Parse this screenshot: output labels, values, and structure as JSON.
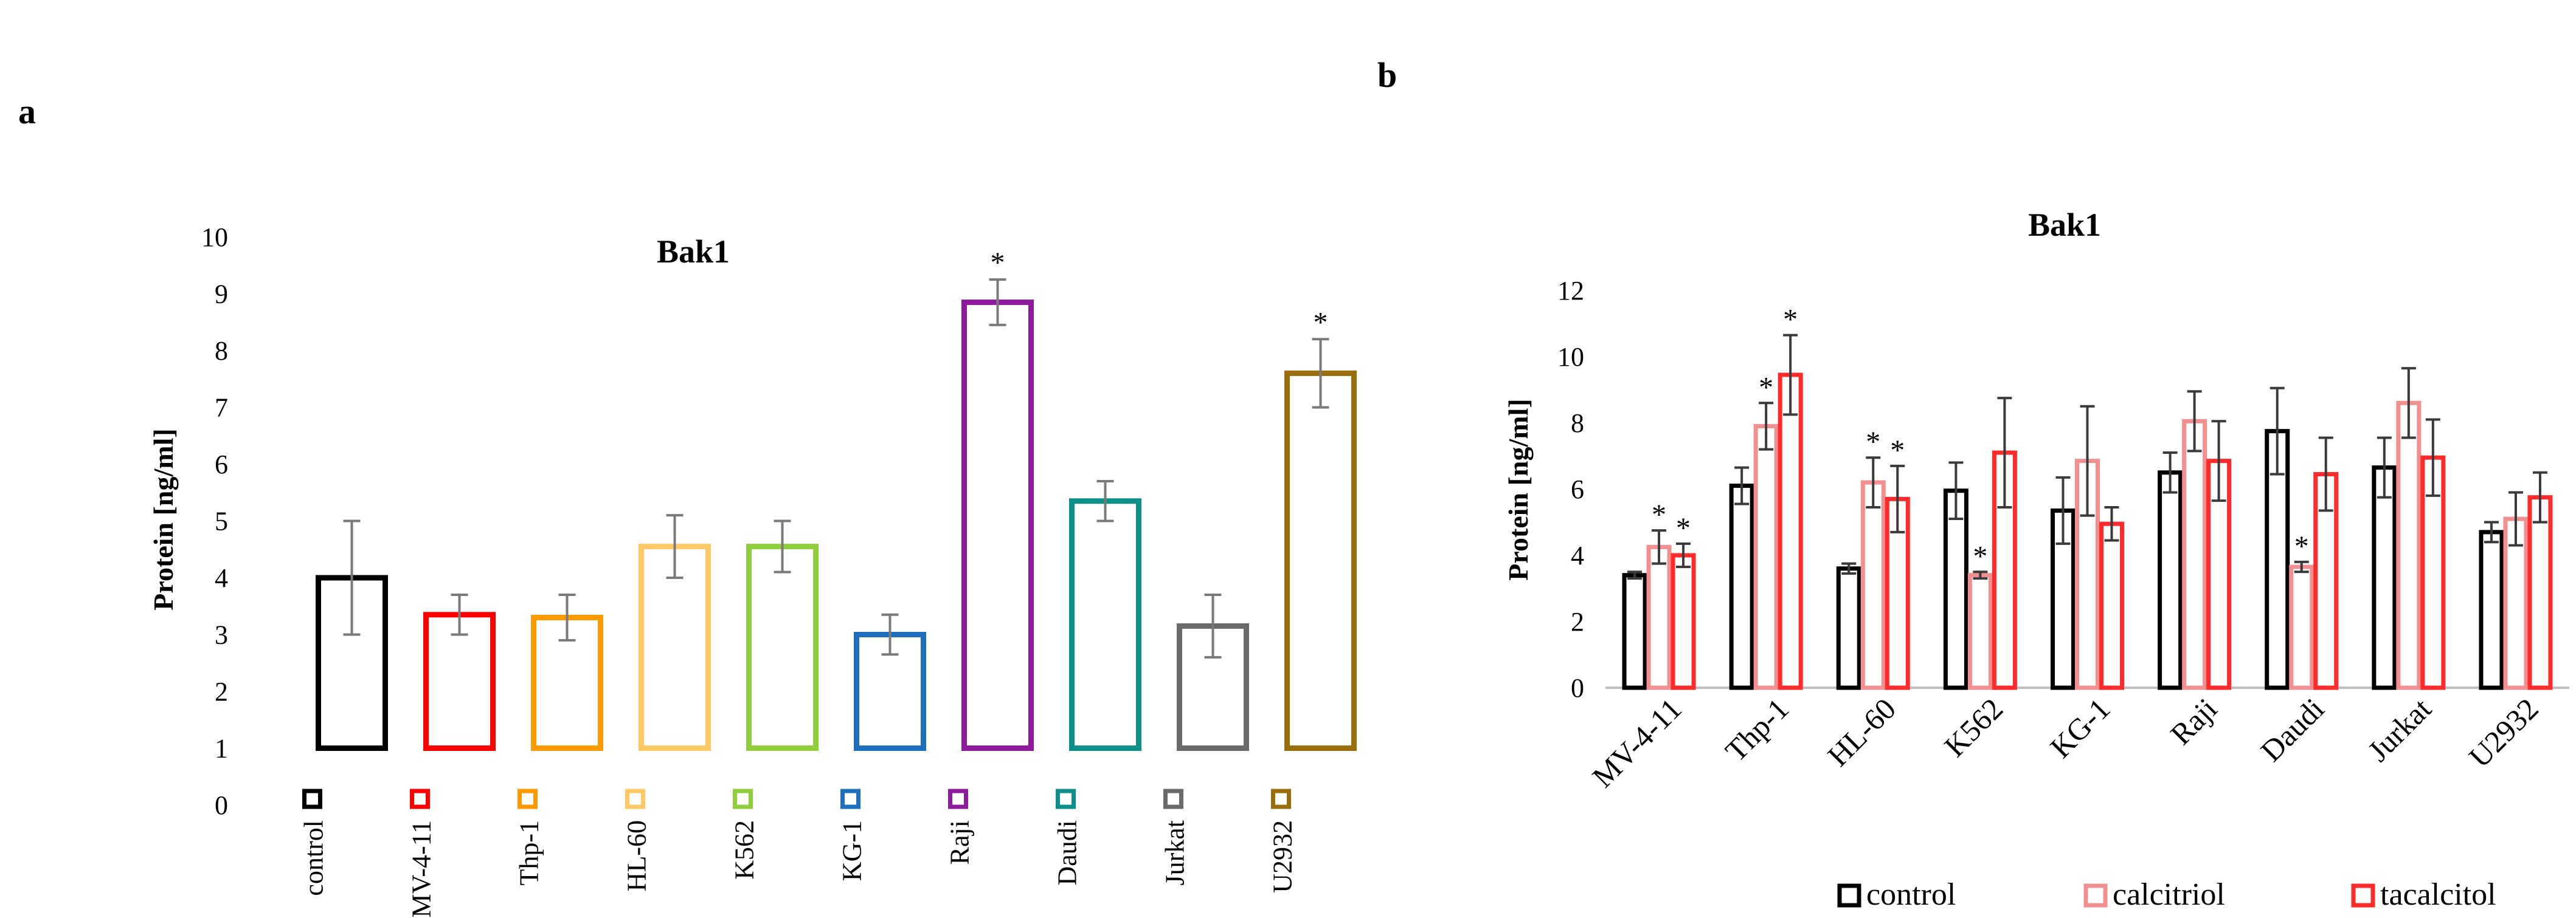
{
  "panels": {
    "a": "a",
    "b": "b"
  },
  "chart_data": [
    {
      "type": "bar",
      "title": "Bak1",
      "ylabel": "Protein [ng/ml]",
      "xlabel": "",
      "ylim": [
        0,
        10
      ],
      "yticks": [
        "0",
        "1",
        "2",
        "3",
        "4",
        "5",
        "6",
        "7",
        "8",
        "9",
        "10"
      ],
      "bar_base": 1,
      "categories": [
        "control",
        "MV-4-11",
        "Thp-1",
        "HL-60",
        "K562",
        "KG-1",
        "Raji",
        "Daudi",
        "Jurkat",
        "U2932"
      ],
      "values": [
        4.0,
        3.35,
        3.3,
        4.55,
        4.55,
        3.0,
        8.85,
        5.35,
        3.15,
        7.6
      ],
      "errors": [
        1.0,
        0.35,
        0.4,
        0.55,
        0.45,
        0.35,
        0.4,
        0.35,
        0.55,
        0.6
      ],
      "colors": [
        "#000000",
        "#ff0000",
        "#ff9900",
        "#ffc966",
        "#8fce3c",
        "#1f6fbf",
        "#8e1b9e",
        "#0d8f8c",
        "#6a6a6a",
        "#9a6e0c"
      ],
      "significance": [
        "",
        "",
        "",
        "",
        "",
        "",
        "*",
        "",
        "",
        "*"
      ]
    },
    {
      "type": "bar",
      "title": "Bak1",
      "ylabel": "Protein [ng/ml]",
      "xlabel": "",
      "ylim": [
        0,
        12
      ],
      "yticks": [
        "0",
        "2",
        "4",
        "6",
        "8",
        "10",
        "12"
      ],
      "categories": [
        "MV-4-11",
        "Thp-1",
        "HL-60",
        "K562",
        "KG-1",
        "Raji",
        "Daudi",
        "Jurkat",
        "U2932"
      ],
      "series": [
        {
          "name": "control",
          "color": "#000000",
          "values": [
            3.4,
            6.1,
            3.6,
            5.95,
            5.35,
            6.5,
            7.75,
            6.65,
            4.7
          ],
          "errors": [
            0.1,
            0.55,
            0.15,
            0.85,
            1.0,
            0.6,
            1.3,
            0.9,
            0.3
          ],
          "significance": [
            "",
            "",
            "",
            "",
            "",
            "",
            "",
            "",
            ""
          ]
        },
        {
          "name": "calcitriol",
          "color": "#f28f8f",
          "values": [
            4.25,
            7.9,
            6.2,
            3.4,
            6.85,
            8.05,
            3.65,
            8.6,
            5.1
          ],
          "errors": [
            0.5,
            0.7,
            0.75,
            0.1,
            1.65,
            0.9,
            0.15,
            1.05,
            0.8
          ],
          "significance": [
            "*",
            "*",
            "*",
            "*",
            "",
            "",
            "*",
            "",
            ""
          ]
        },
        {
          "name": "tacalcitol",
          "color": "#ff2b2b",
          "values": [
            4.0,
            9.45,
            5.7,
            7.1,
            4.95,
            6.85,
            6.45,
            6.95,
            5.75
          ],
          "errors": [
            0.35,
            1.2,
            1.0,
            1.65,
            0.5,
            1.2,
            1.1,
            1.15,
            0.75
          ],
          "significance": [
            "*",
            "*",
            "*",
            "",
            "",
            "",
            "",
            "",
            ""
          ]
        }
      ]
    }
  ]
}
